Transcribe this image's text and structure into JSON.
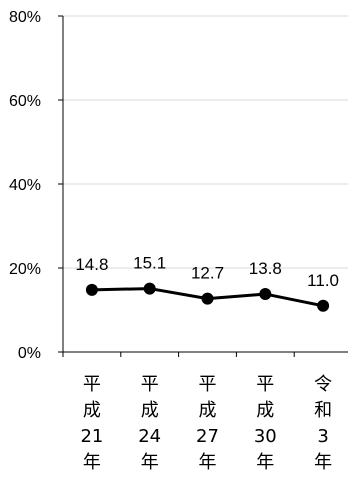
{
  "chart_data": {
    "type": "line",
    "categories": [
      [
        "平",
        "成",
        "21",
        "年"
      ],
      [
        "平",
        "成",
        "24",
        "年"
      ],
      [
        "平",
        "成",
        "27",
        "年"
      ],
      [
        "平",
        "成",
        "30",
        "年"
      ],
      [
        "令",
        "和",
        "3",
        "年"
      ]
    ],
    "values": [
      14.8,
      15.1,
      12.7,
      13.8,
      11.0
    ],
    "data_labels": [
      "14.8",
      "15.1",
      "12.7",
      "13.8",
      "11.0"
    ],
    "ylim": [
      0,
      80
    ],
    "y_ticks": [
      0,
      20,
      40,
      60,
      80
    ],
    "y_tick_labels": [
      "0%",
      "20%",
      "40%",
      "60%",
      "80%"
    ],
    "grid": true,
    "colors": {
      "line": "#000000",
      "marker": "#000000",
      "grid": "#d9d9d9",
      "axis": "#000000"
    }
  }
}
